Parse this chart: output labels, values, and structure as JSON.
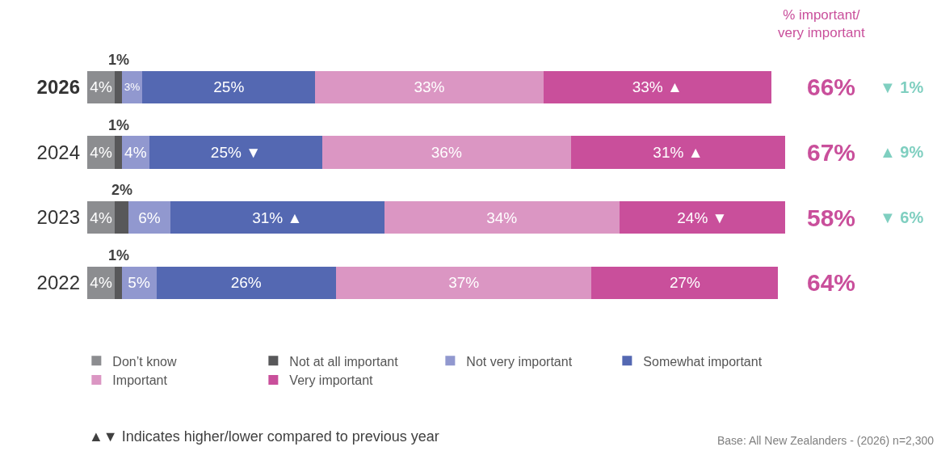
{
  "chart_data": {
    "type": "bar",
    "orientation": "horizontal",
    "stacked": true,
    "tick_labels": "y",
    "legend": "bottom",
    "categories": [
      "2026",
      "2024",
      "2023",
      "2022"
    ],
    "series": [
      {
        "name": "Don’t know",
        "color": "#8c8d90",
        "values": [
          4,
          4,
          4,
          4
        ],
        "value_labels": [
          "4%",
          "4%",
          "4%",
          "4%"
        ]
      },
      {
        "name": "Not at all important",
        "color": "#58585a",
        "values": [
          1,
          1,
          2,
          1
        ],
        "value_labels": [
          "1%",
          "1%",
          "2%",
          "1%"
        ]
      },
      {
        "name": "Not very important",
        "color": "#9198cf",
        "values": [
          3,
          4,
          6,
          5
        ],
        "value_labels": [
          "3%",
          "4%",
          "6%",
          "5%"
        ]
      },
      {
        "name": "Somewhat important",
        "color": "#5468b2",
        "values": [
          25,
          25,
          31,
          26
        ],
        "value_labels": [
          "25%",
          "25% ▼",
          "31% ▲",
          "26%"
        ]
      },
      {
        "name": "Important",
        "color": "#db96c3",
        "values": [
          33,
          36,
          34,
          37
        ],
        "value_labels": [
          "33%",
          "36%",
          "34%",
          "37%"
        ]
      },
      {
        "name": "Very important",
        "color": "#c94f9b",
        "values": [
          33,
          31,
          24,
          27
        ],
        "value_labels": [
          "33% ▲",
          "31% ▲",
          "24% ▼",
          "27%"
        ]
      }
    ],
    "annotations": [
      "% important/\nvery important",
      "66%",
      "▼ 1%",
      "67%",
      "▲ 9%",
      "58%",
      "▼ 6%",
      "64%",
      "▲▼ Indicates higher/lower compared to previous year",
      "Base: All New Zealanders - (2026) n=2,300"
    ]
  }
}
